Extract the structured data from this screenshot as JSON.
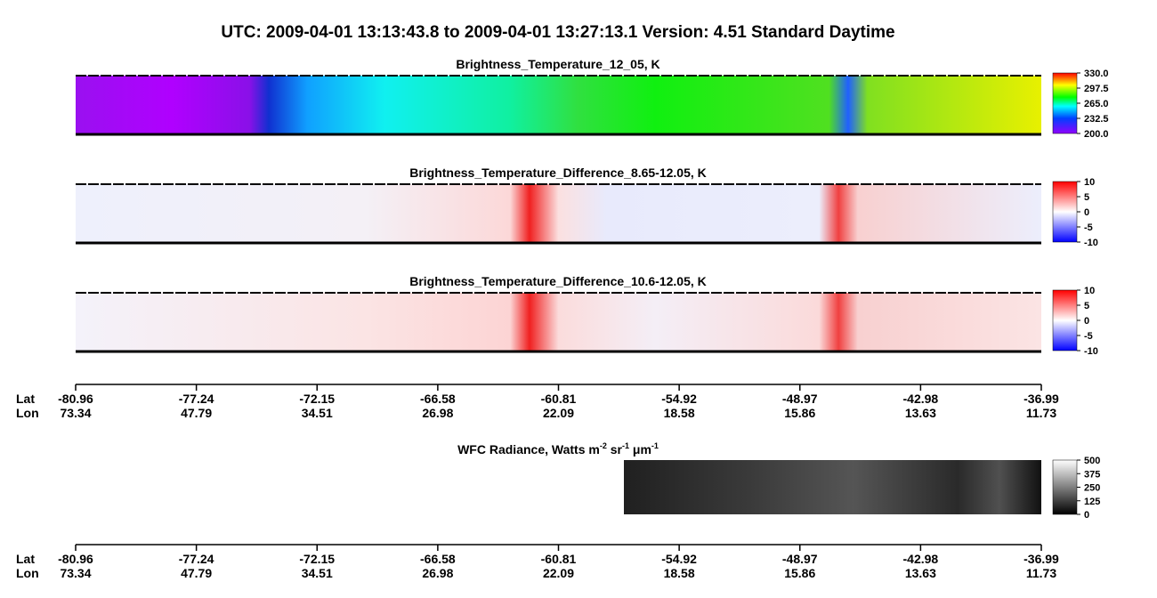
{
  "header": {
    "title": "UTC:  2009-04-01   13:13:43.8  to  2009-04-01   13:27:13.1    Version: 4.51  Standard Daytime"
  },
  "panels": [
    {
      "title": "Brightness_Temperature_12_05, K",
      "colorbar": [
        "330.0",
        "297.5",
        "265.0",
        "232.5",
        "200.0"
      ]
    },
    {
      "title": "Brightness_Temperature_Difference_8.65-12.05, K",
      "colorbar": [
        "10",
        "5",
        "0",
        "-5",
        "-10"
      ]
    },
    {
      "title": "Brightness_Temperature_Difference_10.6-12.05, K",
      "colorbar": [
        "10",
        "5",
        "0",
        "-5",
        "-10"
      ]
    }
  ],
  "axis_top": {
    "lat_label": "Lat",
    "lon_label": "Lon",
    "lat": [
      "-80.96",
      "-77.24",
      "-72.15",
      "-66.58",
      "-60.81",
      "-54.92",
      "-48.97",
      "-42.98",
      "-36.99"
    ],
    "lon": [
      "73.34",
      "47.79",
      "34.51",
      "26.98",
      "22.09",
      "18.58",
      "15.86",
      "13.63",
      "11.73"
    ]
  },
  "wfc": {
    "title_parts": [
      "WFC Radiance, Watts m",
      "-2",
      " sr",
      "-1",
      " μm",
      "-1"
    ],
    "colorbar": [
      "500",
      "375",
      "250",
      "125",
      "0"
    ]
  },
  "axis_bottom": {
    "lat_label": "Lat",
    "lon_label": "Lon",
    "lat": [
      "-80.96",
      "-77.24",
      "-72.15",
      "-66.58",
      "-60.81",
      "-54.92",
      "-48.97",
      "-42.98",
      "-36.99"
    ],
    "lon": [
      "73.34",
      "47.79",
      "34.51",
      "26.98",
      "22.09",
      "18.58",
      "15.86",
      "13.63",
      "11.73"
    ]
  }
}
